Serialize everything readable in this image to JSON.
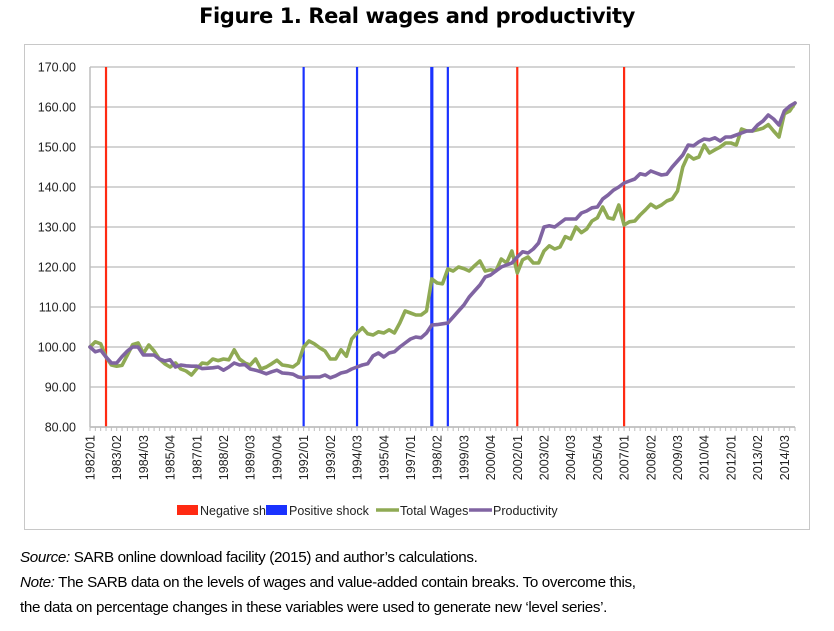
{
  "title": "Figure 1. Real wages and productivity",
  "chart_data": {
    "type": "line",
    "title": "Figure 1. Real wages and productivity",
    "xlabel": "",
    "ylabel": "",
    "ylim": [
      80,
      170
    ],
    "yticks": [
      "80.00",
      "90.00",
      "100.00",
      "110.00",
      "120.00",
      "130.00",
      "140.00",
      "150.00",
      "160.00",
      "170.00"
    ],
    "grid": true,
    "legend_position": "bottom",
    "x_start": "1982/01",
    "x_tick_labels": [
      "1982/01",
      "1983/02",
      "1984/03",
      "1985/04",
      "1987/01",
      "1988/02",
      "1989/03",
      "1990/04",
      "1992/01",
      "1993/02",
      "1994/03",
      "1995/04",
      "1997/01",
      "1998/02",
      "1999/03",
      "2000/04",
      "2002/01",
      "2003/02",
      "2004/03",
      "2005/04",
      "2007/01",
      "2008/02",
      "2009/03",
      "2010/04",
      "2012/01",
      "2013/02",
      "2014/03"
    ],
    "series": [
      {
        "name": "Total Wages",
        "color": "#8faa54",
        "values": [
          100.0,
          101.3,
          100.8,
          97.5,
          95.5,
          95.2,
          95.4,
          98.0,
          100.6,
          101.0,
          98.4,
          100.5,
          99.0,
          97.0,
          95.8,
          95.0,
          96.0,
          94.5,
          94.0,
          93.0,
          94.6,
          96.0,
          95.8,
          97.0,
          96.6,
          97.0,
          96.8,
          99.3,
          97.0,
          96.0,
          95.5,
          97.0,
          94.5,
          95.0,
          95.8,
          96.7,
          95.5,
          95.3,
          95.0,
          96.0,
          100.0,
          101.5,
          100.8,
          99.8,
          99.0,
          97.0,
          97.0,
          99.3,
          97.7,
          102.0,
          103.5,
          104.8,
          103.3,
          103.0,
          103.8,
          103.5,
          104.3,
          103.5,
          106.0,
          109.0,
          108.5,
          108.0,
          108.0,
          109.0,
          117.0,
          116.0,
          115.8,
          119.5,
          119.0,
          120.0,
          119.6,
          119.0,
          120.3,
          121.5,
          119.0,
          119.3,
          119.0,
          122.0,
          121.0,
          124.0,
          118.5,
          121.8,
          122.5,
          121.0,
          121.0,
          124.0,
          125.3,
          124.5,
          125.0,
          127.6,
          127.0,
          130.0,
          128.6,
          129.5,
          131.5,
          132.3,
          135.0,
          132.3,
          132.0,
          135.5,
          130.5,
          131.3,
          131.5,
          133.0,
          134.3,
          135.7,
          134.8,
          135.5,
          136.5,
          137.0,
          139.0,
          145.0,
          148.0,
          147.0,
          147.5,
          150.5,
          148.5,
          149.3,
          150.0,
          151.0,
          151.0,
          150.5,
          154.5,
          154.0,
          154.0,
          154.3,
          154.7,
          155.6,
          154.0,
          152.5,
          158.3,
          159.0,
          161.0
        ]
      },
      {
        "name": "Productivity",
        "color": "#8064a2",
        "values": [
          100.0,
          98.8,
          99.2,
          97.5,
          96.0,
          96.0,
          97.6,
          99.0,
          100.0,
          100.0,
          98.0,
          98.0,
          98.0,
          97.0,
          96.5,
          96.8,
          95.0,
          95.5,
          95.3,
          95.2,
          95.2,
          94.6,
          94.7,
          94.8,
          95.0,
          94.2,
          95.0,
          96.0,
          95.5,
          95.6,
          94.5,
          94.2,
          93.8,
          93.3,
          93.8,
          94.2,
          93.5,
          93.4,
          93.2,
          92.5,
          92.3,
          92.5,
          92.5,
          92.5,
          93.0,
          92.3,
          92.8,
          93.5,
          93.8,
          94.5,
          95.0,
          95.5,
          95.8,
          97.8,
          98.5,
          97.5,
          98.5,
          98.8,
          100.0,
          101.0,
          102.0,
          102.5,
          102.3,
          103.5,
          105.5,
          105.6,
          105.8,
          106.0,
          107.5,
          109.0,
          110.5,
          112.5,
          114.0,
          115.5,
          117.5,
          118.0,
          119.0,
          120.0,
          120.5,
          121.0,
          122.5,
          123.8,
          123.5,
          124.5,
          126.0,
          130.0,
          130.3,
          130.0,
          131.0,
          132.0,
          132.0,
          132.0,
          133.5,
          134.0,
          134.8,
          135.0,
          137.0,
          138.0,
          139.2,
          140.0,
          141.0,
          141.5,
          142.0,
          143.3,
          143.0,
          144.0,
          143.5,
          143.0,
          143.2,
          145.0,
          146.5,
          148.0,
          150.5,
          150.3,
          151.3,
          152.0,
          151.8,
          152.3,
          151.5,
          152.5,
          152.5,
          153.0,
          153.5,
          154.0,
          154.0,
          155.5,
          156.5,
          158.0,
          157.0,
          155.5,
          159.0,
          160.2,
          161.0
        ]
      }
    ],
    "shocks": [
      {
        "type": "Negative shock",
        "quarter": "1982/04",
        "color": "#ff2a12"
      },
      {
        "type": "Positive shock",
        "quarter": "1992/01",
        "color": "#1a32ff"
      },
      {
        "type": "Positive shock",
        "quarter": "1994/03",
        "color": "#1a32ff"
      },
      {
        "type": "Positive shock",
        "quarter": "1998/01",
        "color": "#1a32ff"
      },
      {
        "type": "Positive shock",
        "quarter": "1998/04",
        "color": "#1a32ff"
      },
      {
        "type": "Negative shock",
        "quarter": "2002/01",
        "color": "#ff2a12"
      },
      {
        "type": "Negative shock",
        "quarter": "2007/01",
        "color": "#ff2a12"
      }
    ],
    "legend": [
      {
        "label": "Negative shock",
        "kind": "box",
        "color": "#ff2a12"
      },
      {
        "label": "Positive shock",
        "kind": "box",
        "color": "#1a32ff"
      },
      {
        "label": "Total Wages",
        "kind": "line",
        "color": "#8faa54"
      },
      {
        "label": "Productivity",
        "kind": "line",
        "color": "#8064a2"
      }
    ]
  },
  "caption": {
    "source_label": "Source:",
    "source_text": " SARB online download facility (2015) and author’s calculations.",
    "note_label": "Note:",
    "note_text_1": " The SARB data on the levels of wages and value-added contain breaks. To overcome this,",
    "note_text_2": "the data on percentage changes in these variables were used to generate new ‘level series’."
  }
}
